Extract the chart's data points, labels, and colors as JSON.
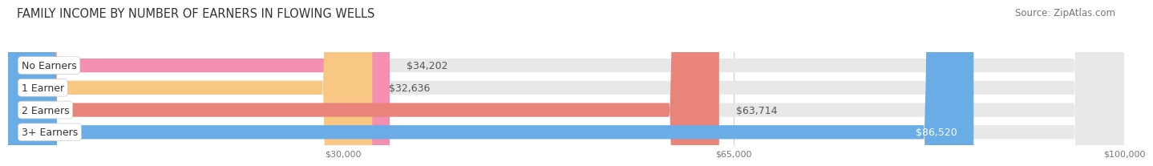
{
  "title": "FAMILY INCOME BY NUMBER OF EARNERS IN FLOWING WELLS",
  "source": "Source: ZipAtlas.com",
  "categories": [
    "No Earners",
    "1 Earner",
    "2 Earners",
    "3+ Earners"
  ],
  "values": [
    34202,
    32636,
    63714,
    86520
  ],
  "bar_colors": [
    "#f48fb1",
    "#f9c784",
    "#e8847a",
    "#6aace6"
  ],
  "value_labels": [
    "$34,202",
    "$32,636",
    "$63,714",
    "$86,520"
  ],
  "value_label_colors": [
    "#555555",
    "#555555",
    "#555555",
    "#ffffff"
  ],
  "xmin": 0,
  "xmax": 100000,
  "xticks": [
    30000,
    65000,
    100000
  ],
  "xtick_labels": [
    "$30,000",
    "$65,000",
    "$100,000"
  ],
  "background_color": "#ffffff",
  "bar_bg_color": "#e8e8e8",
  "title_fontsize": 10.5,
  "source_fontsize": 8.5,
  "label_fontsize": 9,
  "value_fontsize": 9,
  "bar_height": 0.62,
  "bar_gap": 1.0
}
